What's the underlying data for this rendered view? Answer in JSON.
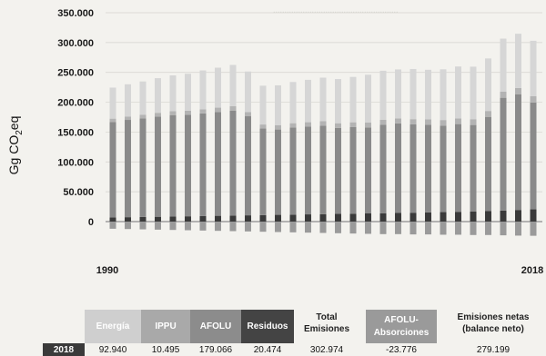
{
  "chart_data": {
    "type": "bar",
    "stacked": true,
    "ylabel": "Gg CO2eq",
    "ylim": [
      -30000,
      350000
    ],
    "yticks": [
      0,
      50000,
      100000,
      150000,
      200000,
      250000,
      300000,
      350000
    ],
    "ytick_labels": [
      "0",
      "50.000",
      "100.000",
      "150.000",
      "200.000",
      "250.000",
      "300.000",
      "350.000"
    ],
    "x_start_label": "1990",
    "x_end_label": "2018",
    "categories": [
      "1990",
      "1991",
      "1992",
      "1993",
      "1994",
      "1995",
      "1996",
      "1997",
      "1998",
      "1999",
      "2000",
      "2001",
      "2002",
      "2003",
      "2004",
      "2005",
      "2006",
      "2007",
      "2008",
      "2009",
      "2010",
      "2011",
      "2012",
      "2013",
      "2014",
      "2015",
      "2016",
      "2017",
      "2018"
    ],
    "series": [
      {
        "name": "Residuos",
        "color": "#3a3a3a",
        "values": [
          7000,
          7400,
          7800,
          8100,
          8500,
          8900,
          9300,
          9700,
          10100,
          10500,
          10900,
          11300,
          11700,
          12100,
          12500,
          12900,
          13300,
          13700,
          14100,
          14500,
          14900,
          15400,
          15900,
          16400,
          16900,
          17500,
          18500,
          19500,
          20474
        ]
      },
      {
        "name": "AFOLU",
        "color": "#8a8a8a",
        "values": [
          160000,
          163000,
          165000,
          168000,
          170000,
          170000,
          172000,
          174000,
          176000,
          166000,
          145000,
          143000,
          146000,
          147000,
          148000,
          144000,
          145000,
          144000,
          148000,
          150000,
          148000,
          147000,
          145000,
          147000,
          145000,
          158000,
          189000,
          194000,
          179066
        ]
      },
      {
        "name": "IPPU",
        "color": "#b3b3b3",
        "values": [
          5500,
          5700,
          6000,
          6200,
          6500,
          6800,
          7000,
          7200,
          7400,
          7000,
          6800,
          7000,
          7200,
          7400,
          7700,
          7900,
          8100,
          8400,
          8700,
          8500,
          8800,
          9000,
          9300,
          9500,
          9700,
          9900,
          10100,
          10300,
          10495
        ]
      },
      {
        "name": "Energía",
        "color": "#d6d6d6",
        "values": [
          52000,
          54000,
          56000,
          58000,
          60000,
          62000,
          65000,
          67000,
          69000,
          68000,
          65000,
          67000,
          69000,
          71000,
          73000,
          74000,
          76000,
          80000,
          82000,
          82000,
          84000,
          83000,
          85000,
          87000,
          88000,
          88000,
          89000,
          91000,
          92940
        ]
      },
      {
        "name": "AFOLU-Absorciones",
        "color": "#9a9a9a",
        "values": [
          -12000,
          -12500,
          -13000,
          -13500,
          -14000,
          -14500,
          -15000,
          -15500,
          -16000,
          -16500,
          -17000,
          -17500,
          -18000,
          -18500,
          -19000,
          -19500,
          -20000,
          -20500,
          -21000,
          -21000,
          -21500,
          -21500,
          -22000,
          -22000,
          -22500,
          -22500,
          -23000,
          -23500,
          -23776
        ]
      }
    ]
  },
  "table": {
    "headers": {
      "energia": "Energía",
      "ippu": "IPPU",
      "afolu": "AFOLU",
      "residuos": "Residuos",
      "total": "Total Emisiones",
      "absorciones": "AFOLU-Absorciones",
      "netas": "Emisiones netas (balance neto)"
    },
    "row": {
      "year": "2018",
      "energia": "92.940",
      "ippu": "10.495",
      "afolu": "179.066",
      "residuos": "20.474",
      "total": "302.974",
      "absorciones": "-23.776",
      "netas": "279.199"
    },
    "colors": {
      "energia": "#cfcfcf",
      "ippu": "#a9a9a9",
      "afolu": "#8c8c8c",
      "residuos": "#444444",
      "absorciones": "#9a9a9a",
      "year": "#3a3a3a"
    }
  }
}
